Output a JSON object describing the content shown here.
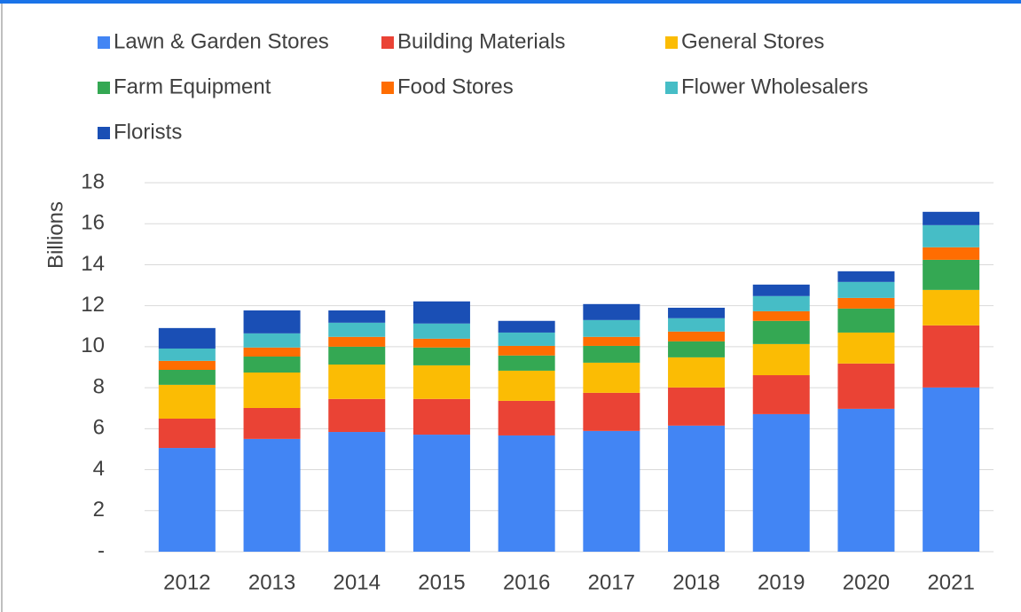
{
  "chart_data": {
    "type": "stacked_bar",
    "y_label": "Billions",
    "categories": [
      "2012",
      "2013",
      "2014",
      "2015",
      "2016",
      "2017",
      "2018",
      "2019",
      "2020",
      "2021"
    ],
    "series": [
      {
        "name": "Lawn & Garden Stores",
        "color": "#4285f4",
        "values": [
          5.06,
          5.5,
          5.84,
          5.71,
          5.67,
          5.89,
          6.15,
          6.71,
          6.97,
          8.01
        ]
      },
      {
        "name": "Building Materials",
        "color": "#ea4335",
        "values": [
          1.43,
          1.51,
          1.61,
          1.74,
          1.69,
          1.86,
          1.86,
          1.9,
          2.21,
          3.03
        ]
      },
      {
        "name": "General Stores",
        "color": "#fbbc04",
        "values": [
          1.65,
          1.73,
          1.68,
          1.64,
          1.47,
          1.47,
          1.47,
          1.52,
          1.51,
          1.73
        ]
      },
      {
        "name": "Farm Equipment",
        "color": "#34a853",
        "values": [
          0.73,
          0.78,
          0.87,
          0.87,
          0.74,
          0.82,
          0.78,
          1.13,
          1.17,
          1.47
        ]
      },
      {
        "name": "Food Stores",
        "color": "#ff6d01",
        "values": [
          0.44,
          0.44,
          0.48,
          0.43,
          0.47,
          0.44,
          0.48,
          0.47,
          0.52,
          0.61
        ]
      },
      {
        "name": "Flower Wholesalers",
        "color": "#46bdc6",
        "values": [
          0.6,
          0.69,
          0.69,
          0.74,
          0.65,
          0.82,
          0.65,
          0.74,
          0.78,
          1.08
        ]
      },
      {
        "name": "Florists",
        "color": "#1a4fb5",
        "values": [
          1.0,
          1.12,
          0.6,
          1.08,
          0.57,
          0.78,
          0.51,
          0.56,
          0.52,
          0.65
        ]
      }
    ],
    "ylim": [
      0,
      18
    ],
    "yticks": [
      {
        "value": 0,
        "label": "-"
      },
      2,
      4,
      6,
      8,
      10,
      12,
      14,
      16,
      18
    ],
    "grid": true
  }
}
